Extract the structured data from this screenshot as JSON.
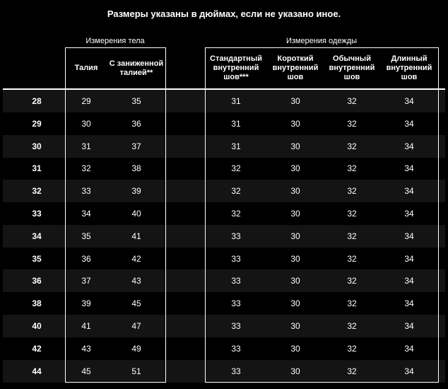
{
  "title": "Размеры указаны в дюймах, если не указано иное.",
  "groups": {
    "body": "Измерения тела",
    "garment": "Измерения одежды"
  },
  "headers": {
    "size": "",
    "waist": "Талия",
    "low_waist": "С заниженной талией**",
    "standard_inseam": "Стандартный внутренний шов***",
    "short_inseam": "Короткий внутренний шов",
    "regular_inseam": "Обычный внутренний шов",
    "long_inseam": "Длинный внутренний шов"
  },
  "rows": [
    {
      "size": "28",
      "waist": "29",
      "low_waist": "35",
      "standard_inseam": "31",
      "short_inseam": "30",
      "regular_inseam": "32",
      "long_inseam": "34"
    },
    {
      "size": "29",
      "waist": "30",
      "low_waist": "36",
      "standard_inseam": "31",
      "short_inseam": "30",
      "regular_inseam": "32",
      "long_inseam": "34"
    },
    {
      "size": "30",
      "waist": "31",
      "low_waist": "37",
      "standard_inseam": "31",
      "short_inseam": "30",
      "regular_inseam": "32",
      "long_inseam": "34"
    },
    {
      "size": "31",
      "waist": "32",
      "low_waist": "38",
      "standard_inseam": "32",
      "short_inseam": "30",
      "regular_inseam": "32",
      "long_inseam": "34"
    },
    {
      "size": "32",
      "waist": "33",
      "low_waist": "39",
      "standard_inseam": "32",
      "short_inseam": "30",
      "regular_inseam": "32",
      "long_inseam": "34"
    },
    {
      "size": "33",
      "waist": "34",
      "low_waist": "40",
      "standard_inseam": "32",
      "short_inseam": "30",
      "regular_inseam": "32",
      "long_inseam": "34"
    },
    {
      "size": "34",
      "waist": "35",
      "low_waist": "41",
      "standard_inseam": "33",
      "short_inseam": "30",
      "regular_inseam": "32",
      "long_inseam": "34"
    },
    {
      "size": "35",
      "waist": "36",
      "low_waist": "42",
      "standard_inseam": "33",
      "short_inseam": "30",
      "regular_inseam": "32",
      "long_inseam": "34"
    },
    {
      "size": "36",
      "waist": "37",
      "low_waist": "43",
      "standard_inseam": "33",
      "short_inseam": "30",
      "regular_inseam": "32",
      "long_inseam": "34"
    },
    {
      "size": "38",
      "waist": "39",
      "low_waist": "45",
      "standard_inseam": "33",
      "short_inseam": "30",
      "regular_inseam": "32",
      "long_inseam": "34"
    },
    {
      "size": "40",
      "waist": "41",
      "low_waist": "47",
      "standard_inseam": "33",
      "short_inseam": "30",
      "regular_inseam": "32",
      "long_inseam": "34"
    },
    {
      "size": "42",
      "waist": "43",
      "low_waist": "49",
      "standard_inseam": "33",
      "short_inseam": "30",
      "regular_inseam": "32",
      "long_inseam": "34"
    },
    {
      "size": "44",
      "waist": "45",
      "low_waist": "51",
      "standard_inseam": "33",
      "short_inseam": "30",
      "regular_inseam": "32",
      "long_inseam": "34"
    }
  ]
}
